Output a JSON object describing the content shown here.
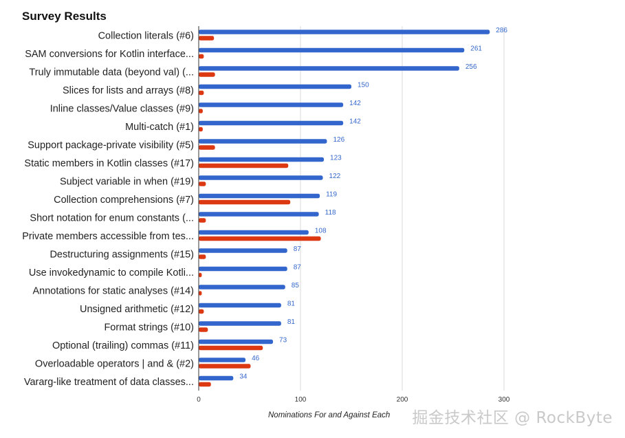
{
  "chart_data": {
    "type": "bar",
    "orientation": "horizontal",
    "title": "Survey Results",
    "xlabel": "Nominations For and Against Each",
    "xlim": [
      0,
      300
    ],
    "xticks": [
      0,
      100,
      200,
      300
    ],
    "grid": true,
    "categories": [
      "Collection literals (#6)",
      "SAM conversions for Kotlin interface...",
      "Truly immutable data (beyond val) (...",
      "Slices for lists and arrays (#8)",
      "Inline classes/Value classes (#9)",
      "Multi-catch (#1)",
      "Support package-private visibility (#5)",
      "Static members in Kotlin classes (#17)",
      "Subject variable in when (#19)",
      "Collection comprehensions (#7)",
      "Short notation for enum constants (...",
      "Private members accessible from tes...",
      "Destructuring assignments (#15)",
      "Use invokedynamic to compile Kotli...",
      "Annotations for static analyses (#14)",
      "Unsigned arithmetic (#12)",
      "Format strings (#10)",
      "Optional (trailing) commas (#11)",
      "Overloadable operators | and & (#2)",
      "Vararg-like treatment of data classes..."
    ],
    "series": [
      {
        "color": "#3366cc",
        "labeled": true,
        "values": [
          286,
          261,
          256,
          150,
          142,
          142,
          126,
          123,
          122,
          119,
          118,
          108,
          87,
          87,
          85,
          81,
          81,
          73,
          46,
          34
        ]
      },
      {
        "color": "#dc3912",
        "labeled": false,
        "values": [
          15,
          5,
          16,
          5,
          4,
          4,
          16,
          88,
          7,
          90,
          7,
          120,
          7,
          3,
          3,
          5,
          9,
          63,
          51,
          12
        ]
      }
    ]
  },
  "watermark": "掘金技术社区 @ RockByte"
}
